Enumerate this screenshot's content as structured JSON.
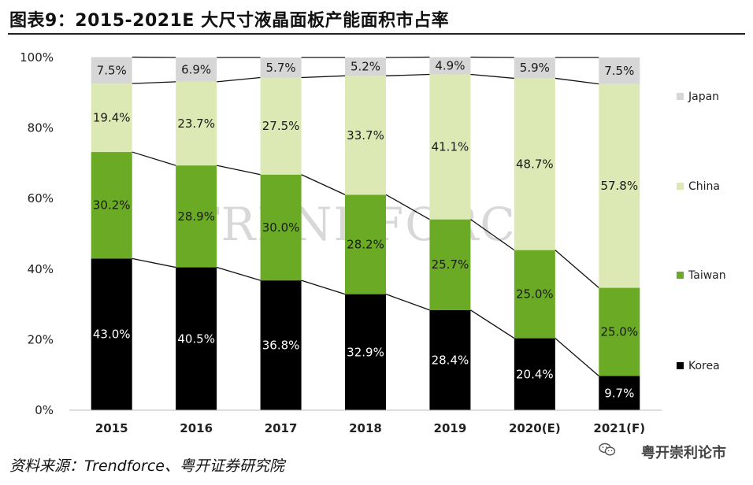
{
  "title": "图表9：2015-2021E 大尺寸液晶面板产能面积市占率",
  "source": "资料来源：Trendforce、粤开证券研究院",
  "account": "粤开崇利论市",
  "watermark": "TRENDFORCE",
  "chart_data": {
    "type": "bar",
    "stacked": true,
    "categories": [
      "2015",
      "2016",
      "2017",
      "2018",
      "2019",
      "2020(E)",
      "2021(F)"
    ],
    "y_ticks": [
      "0%",
      "20%",
      "40%",
      "60%",
      "80%",
      "100%"
    ],
    "ylim": [
      0,
      100
    ],
    "legend_position": "right",
    "series": [
      {
        "name": "Korea",
        "color": "#000000",
        "label_color": "#ffffff",
        "values": [
          43.0,
          40.5,
          36.8,
          32.9,
          28.4,
          20.4,
          9.7
        ],
        "labels": [
          "43.0%",
          "40.5%",
          "36.8%",
          "32.9%",
          "28.4%",
          "20.4%",
          "9.7%"
        ]
      },
      {
        "name": "Taiwan",
        "color": "#6aaa24",
        "label_color": "#1a1a1a",
        "values": [
          30.2,
          28.9,
          30.0,
          28.2,
          25.7,
          25.0,
          25.0
        ],
        "labels": [
          "30.2%",
          "28.9%",
          "30.0%",
          "28.2%",
          "25.7%",
          "25.0%",
          "25.0%"
        ]
      },
      {
        "name": "China",
        "color": "#dde9b4",
        "label_color": "#1a1a1a",
        "values": [
          19.4,
          23.7,
          27.5,
          33.7,
          41.1,
          48.7,
          57.8
        ],
        "labels": [
          "19.4%",
          "23.7%",
          "27.5%",
          "33.7%",
          "41.1%",
          "48.7%",
          "57.8%"
        ]
      },
      {
        "name": "Japan",
        "color": "#d6d6d6",
        "label_color": "#1a1a1a",
        "values": [
          7.5,
          6.9,
          5.7,
          5.2,
          4.9,
          5.9,
          7.5
        ],
        "labels": [
          "7.5%",
          "6.9%",
          "5.7%",
          "5.2%",
          "4.9%",
          "5.9%",
          "7.5%"
        ]
      }
    ]
  }
}
